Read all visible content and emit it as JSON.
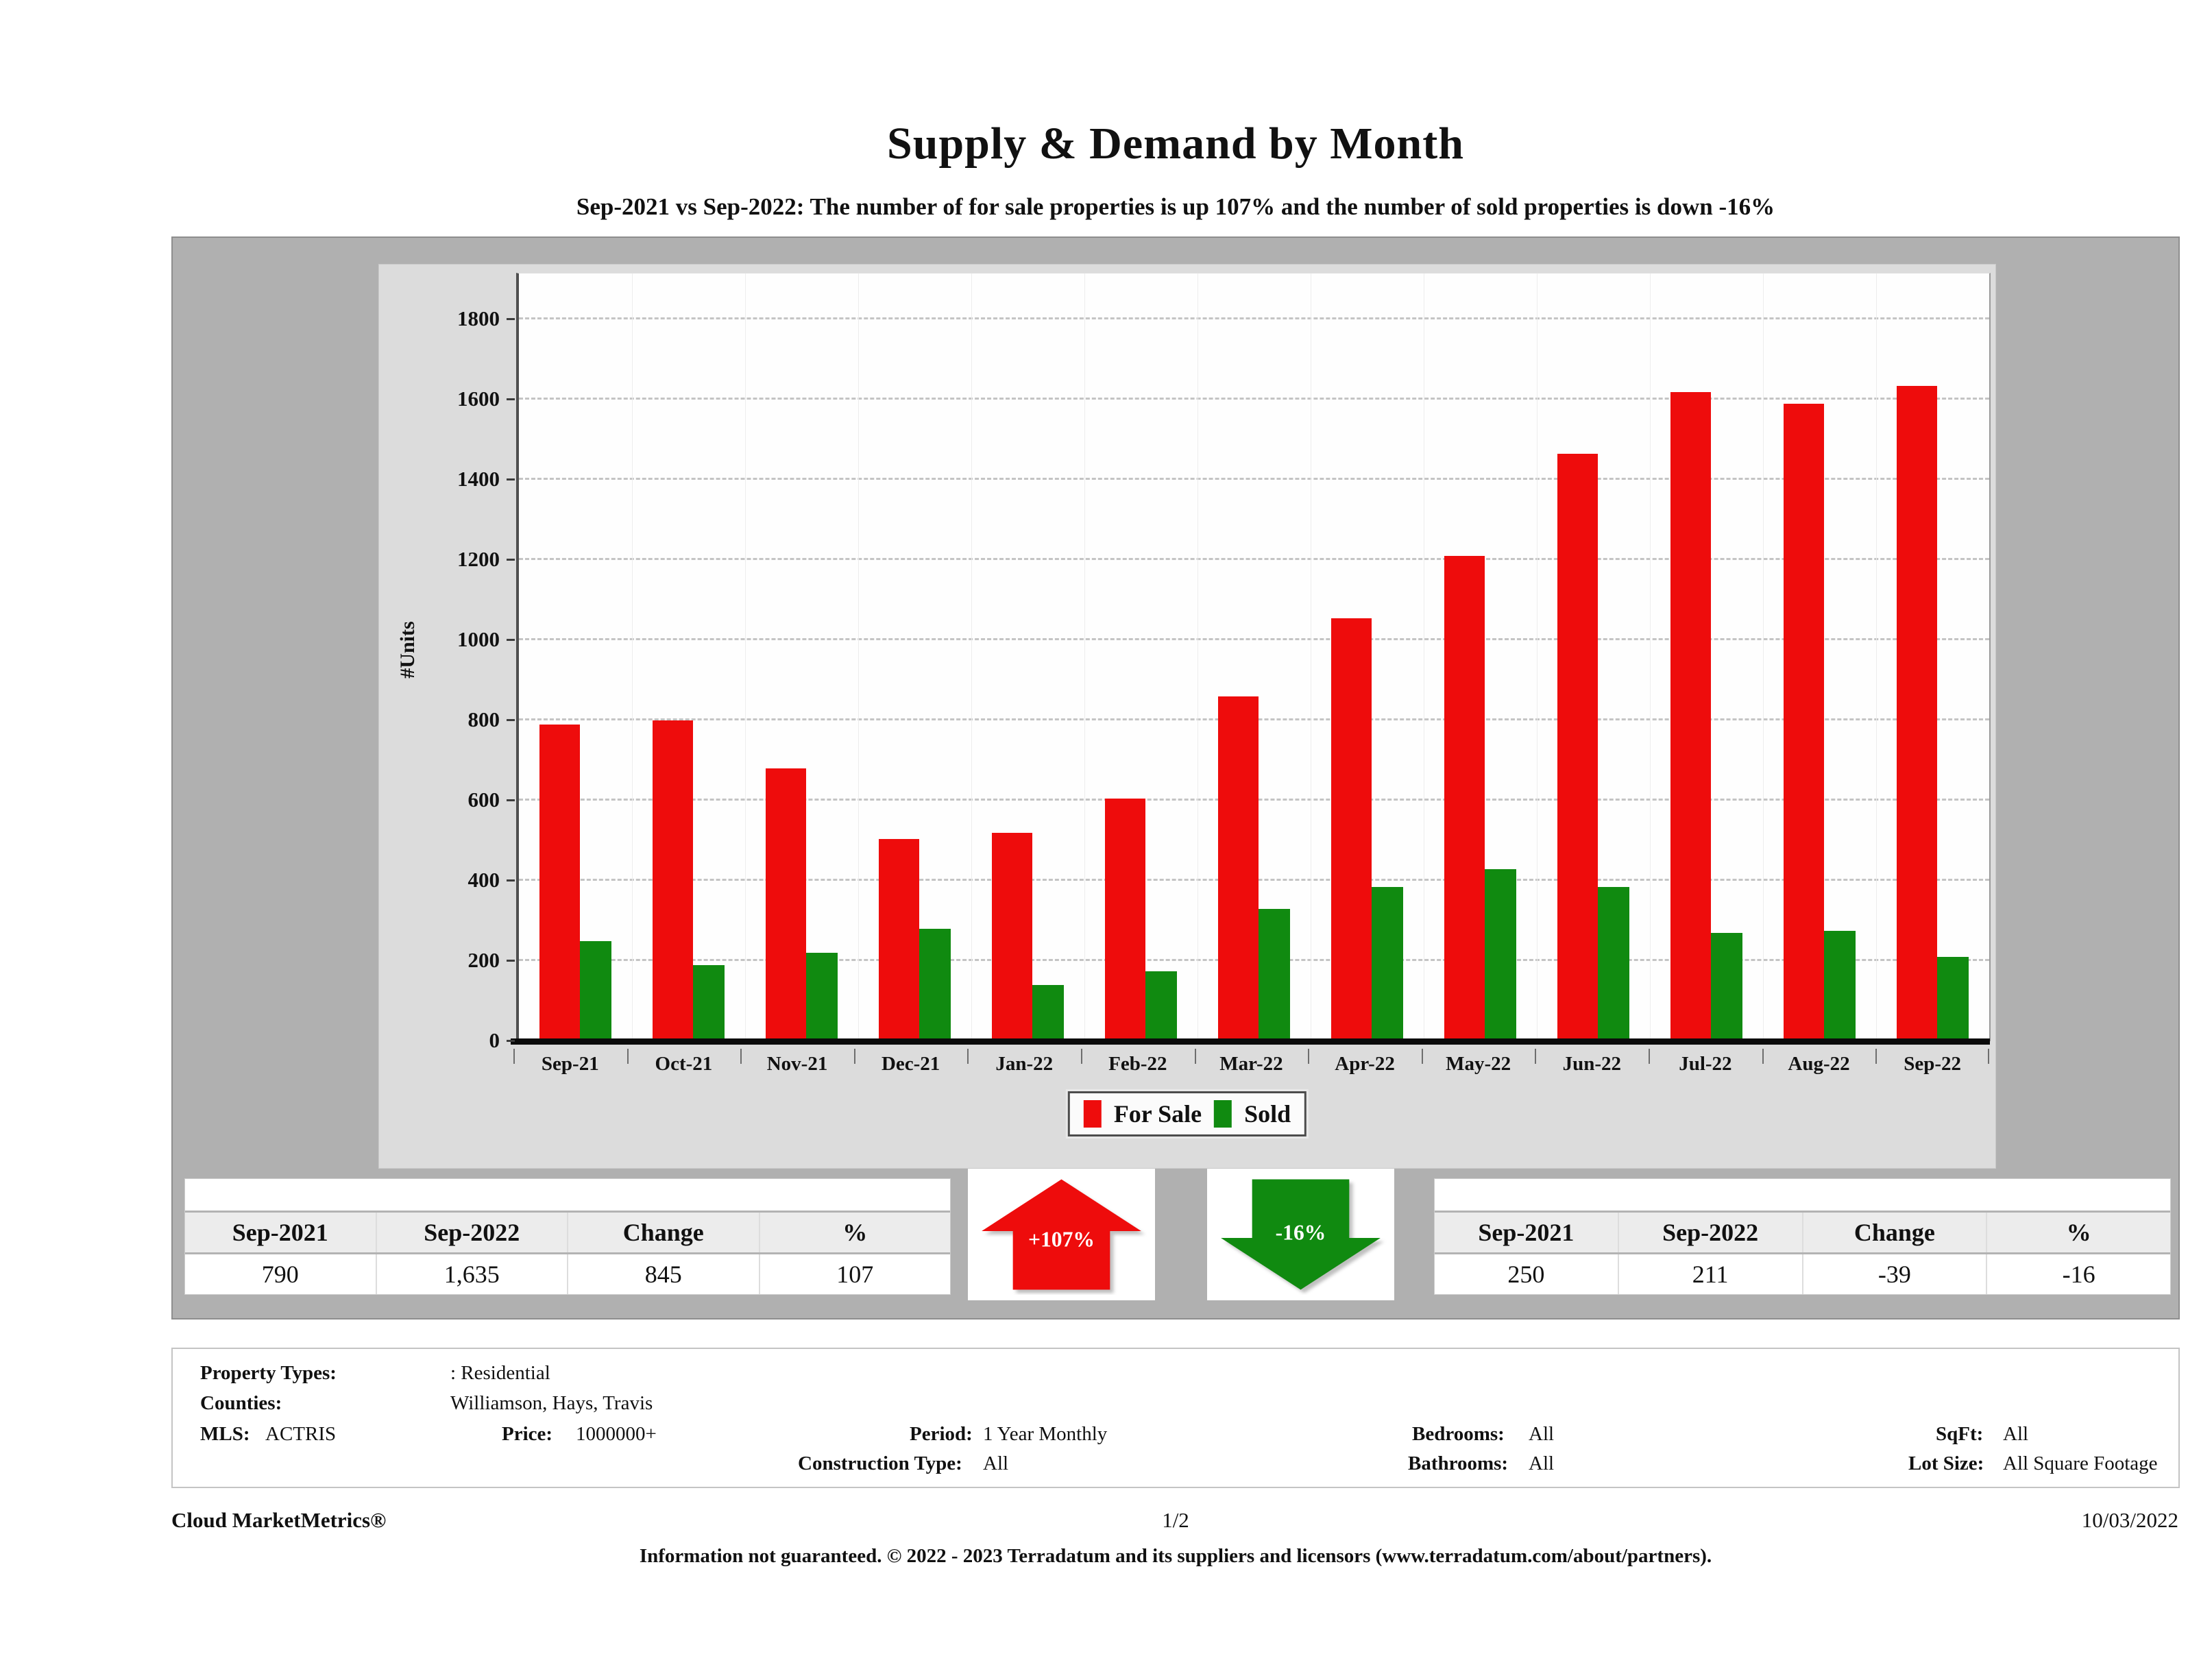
{
  "page": {
    "title": "Supply & Demand by Month",
    "subtitle": "Sep-2021 vs Sep-2022: The number of for sale properties is up 107% and the number of sold properties is down -16%"
  },
  "colors": {
    "for_sale_red": "#ee0c0c",
    "sold_green": "#108a10",
    "container_gray": "#b0b0b0",
    "panel_gray": "#dcdcdc"
  },
  "chart_data": {
    "type": "bar",
    "title": "Supply & Demand by Month",
    "xlabel": "",
    "ylabel": "#Units",
    "categories": [
      "Sep-21",
      "Oct-21",
      "Nov-21",
      "Dec-21",
      "Jan-22",
      "Feb-22",
      "Mar-22",
      "Apr-22",
      "May-22",
      "Jun-22",
      "Jul-22",
      "Aug-22",
      "Sep-22"
    ],
    "series": [
      {
        "name": "For Sale",
        "color": "#ee0c0c",
        "values": [
          790,
          800,
          680,
          505,
          520,
          605,
          860,
          1055,
          1210,
          1465,
          1620,
          1590,
          1635
        ]
      },
      {
        "name": "Sold",
        "color": "#108a10",
        "values": [
          250,
          190,
          220,
          280,
          140,
          175,
          330,
          385,
          430,
          385,
          270,
          275,
          211
        ]
      }
    ],
    "y_ticks": [
      0,
      200,
      400,
      600,
      800,
      1000,
      1200,
      1400,
      1600,
      1800
    ],
    "ylim": [
      0,
      1915
    ],
    "grid": "horizontal-dashed",
    "legend_position": "bottom"
  },
  "legend": {
    "for_sale": "For Sale",
    "sold": "Sold"
  },
  "supply_table": {
    "headers": [
      "Sep-2021",
      "Sep-2022",
      "Change",
      "%"
    ],
    "values": [
      "790",
      "1,635",
      "845",
      "107"
    ]
  },
  "demand_table": {
    "headers": [
      "Sep-2021",
      "Sep-2022",
      "Change",
      "%"
    ],
    "values": [
      "250",
      "211",
      "-39",
      "-16"
    ]
  },
  "up_arrow_label": "+107%",
  "down_arrow_label": "-16%",
  "filters": {
    "property_types_label": "Property Types:",
    "property_types_value": ": Residential",
    "counties_label": "Counties:",
    "counties_value": "Williamson, Hays, Travis",
    "mls_label": "MLS:",
    "mls_value": "ACTRIS",
    "price_label": "Price:",
    "price_value": "1000000+",
    "period_label": "Period:",
    "period_value": "1 Year Monthly",
    "construction_label": "Construction Type:",
    "construction_value": "All",
    "bedrooms_label": "Bedrooms:",
    "bedrooms_value": "All",
    "bathrooms_label": "Bathrooms:",
    "bathrooms_value": "All",
    "sqft_label": "SqFt:",
    "sqft_value": "All",
    "lot_size_label": "Lot Size:",
    "lot_size_value": "All Square Footage"
  },
  "footer": {
    "brand": "Cloud MarketMetrics®",
    "page_number": "1/2",
    "date": "10/03/2022",
    "disclaimer": "Information not guaranteed. © 2022 - 2023 Terradatum and its suppliers and licensors (www.terradatum.com/about/partners)."
  }
}
